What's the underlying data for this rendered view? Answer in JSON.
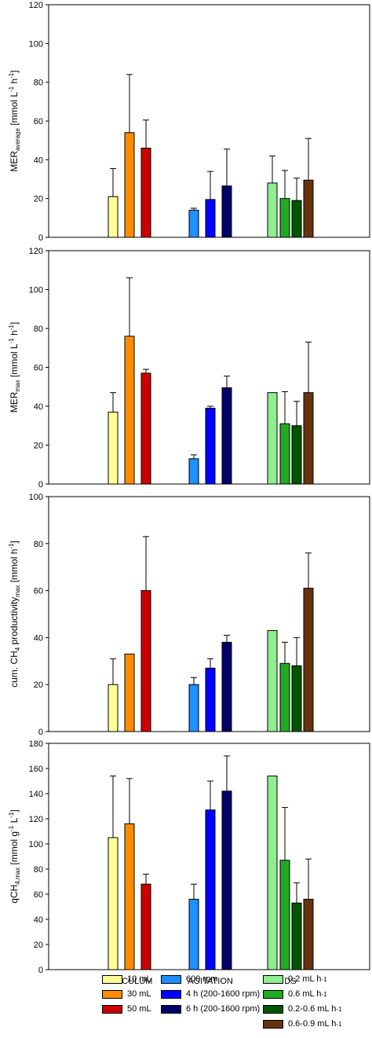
{
  "chart_data": {
    "type": "bar",
    "groups": [
      "INOCULUM",
      "AGITATION",
      "DS"
    ],
    "series": [
      {
        "name": "10 mL",
        "group": "INOCULUM",
        "color": "#FFFF99"
      },
      {
        "name": "30 mL",
        "group": "INOCULUM",
        "color": "#FF8C00"
      },
      {
        "name": "50 mL",
        "group": "INOCULUM",
        "color": "#CC0000"
      },
      {
        "name": "600 rpm",
        "group": "AGITATION",
        "color": "#1E90FF"
      },
      {
        "name": "4 h (200-1600 rpm)",
        "group": "AGITATION",
        "color": "#0000FF"
      },
      {
        "name": "6 h (200-1600 rpm)",
        "group": "AGITATION",
        "color": "#000066"
      },
      {
        "name": "0.2 mL h",
        "sup": "-1",
        "group": "DS",
        "color": "#90EE90"
      },
      {
        "name": "0.6 mL h",
        "sup": "-1",
        "group": "DS",
        "color": "#22AA22"
      },
      {
        "name": "0.2-0.6 mL h",
        "sup": "-1",
        "group": "DS",
        "color": "#005500"
      },
      {
        "name": "0.6-0.9 mL h",
        "sup": "-1",
        "group": "DS",
        "color": "#663311"
      }
    ],
    "panels": [
      {
        "ylabel_main": "MER",
        "ylabel_sub": "average",
        "ylabel_rest": " [mmol L",
        "ylabel_sup1": "-1",
        "ylabel_mid": " h",
        "ylabel_sup2": "-1",
        "ylabel_end": "]",
        "ylim": [
          0,
          120
        ],
        "yticks": [
          0,
          20,
          40,
          60,
          80,
          100,
          120
        ],
        "values": [
          21,
          54,
          46,
          14,
          19.5,
          26.5,
          28,
          20,
          19,
          29.5
        ],
        "errors": [
          14.5,
          30,
          14.5,
          1,
          14.5,
          19,
          14,
          14.5,
          11.5,
          21.5
        ]
      },
      {
        "ylabel_main": "MER",
        "ylabel_sub": "max",
        "ylabel_rest": " [mmol L",
        "ylabel_sup1": "-1",
        "ylabel_mid": " h",
        "ylabel_sup2": "-1",
        "ylabel_end": "]",
        "ylim": [
          0,
          120
        ],
        "yticks": [
          0,
          20,
          40,
          60,
          80,
          100,
          120
        ],
        "values": [
          37,
          76,
          57,
          13,
          39,
          49.5,
          47,
          31,
          30,
          47
        ],
        "errors": [
          10,
          30,
          2,
          2,
          1,
          6,
          0,
          16.5,
          12.5,
          26
        ]
      },
      {
        "ylabel_main": "cum. CH",
        "ylabel_sub": "4",
        "ylabel_rest": " productivity",
        "ylabel_sub2": "max",
        "ylabel_mid": " [mmol h",
        "ylabel_sup2": "-1",
        "ylabel_end": "]",
        "ylim": [
          0,
          100
        ],
        "yticks": [
          0,
          20,
          40,
          60,
          80,
          100
        ],
        "values": [
          20,
          33,
          60,
          20,
          27,
          38,
          43,
          29,
          28,
          61
        ],
        "errors": [
          11,
          0,
          23,
          3,
          4,
          3,
          0,
          9,
          12,
          15
        ]
      },
      {
        "ylabel_main": "qCH",
        "ylabel_sub": "4,max",
        "ylabel_rest": " [mmol g",
        "ylabel_sup1": "-1",
        "ylabel_mid": " L",
        "ylabel_sup2": "-1",
        "ylabel_end": "]",
        "ylim": [
          0,
          180
        ],
        "yticks": [
          0,
          20,
          40,
          60,
          80,
          100,
          120,
          140,
          160,
          180
        ],
        "values": [
          105,
          116,
          68,
          56,
          127,
          142,
          154,
          87,
          53,
          56
        ],
        "errors": [
          49,
          36,
          8,
          12,
          23,
          28,
          0,
          42,
          16,
          32
        ]
      }
    ]
  }
}
